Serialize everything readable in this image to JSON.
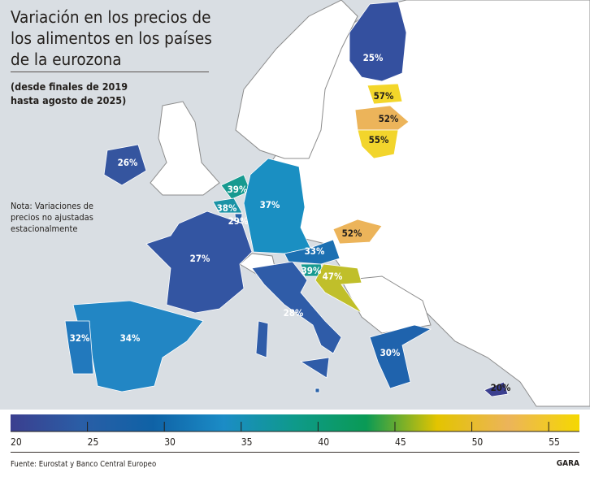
{
  "title": "Variación en los precios de los alimentos en los países de la eurozona",
  "subtitle": "(desde finales de 2019\nhasta agosto de 2025)",
  "note": "Nota: Variaciones de precios no ajustadas estacionalmente",
  "source": "Fuente: Eurostat y Banco Central Europeo",
  "brand": "GARA",
  "colors": {
    "sea": "#d9dee3",
    "non_euro_land": "#ffffff",
    "border": "#8c8c8c"
  },
  "legend": {
    "ticks": [
      "20",
      "25",
      "30",
      "35",
      "40",
      "45",
      "50",
      "55"
    ],
    "range": [
      20,
      57
    ],
    "stops": [
      "#3b3f8f",
      "#2a5ea6",
      "#0f62a6",
      "#1b8cc6",
      "#0e9a8a",
      "#0a9a55",
      "#e3c400",
      "#ecb45a",
      "#f5d800"
    ]
  },
  "regions": [
    {
      "label": "25%",
      "value": 25,
      "color": "#34509f"
    },
    {
      "label": "57%",
      "value": 57,
      "color": "#f3d62a"
    },
    {
      "label": "52%",
      "value": 52,
      "color": "#ecb45a"
    },
    {
      "label": "55%",
      "value": 55,
      "color": "#f2d52c"
    },
    {
      "label": "26%",
      "value": 26,
      "color": "#35559f"
    },
    {
      "label": "39%",
      "value": 39,
      "color": "#179a90"
    },
    {
      "label": "38%",
      "value": 38,
      "color": "#1a93a6"
    },
    {
      "label": "29%",
      "value": 29,
      "color": "#2a62a8"
    },
    {
      "label": "37%",
      "value": 37,
      "color": "#1a8fc2"
    },
    {
      "label": "27%",
      "value": 27,
      "color": "#3355a2"
    },
    {
      "label": "52%",
      "value": 52,
      "color": "#ecb45a"
    },
    {
      "label": "33%",
      "value": 33,
      "color": "#1c70b2"
    },
    {
      "label": "39%",
      "value": 39,
      "color": "#179a90"
    },
    {
      "label": "47%",
      "value": 47,
      "color": "#c0bf2a"
    },
    {
      "label": "28%",
      "value": 28,
      "color": "#2f5ca8"
    },
    {
      "label": "34%",
      "value": 34,
      "color": "#2286c4"
    },
    {
      "label": "32%",
      "value": 32,
      "color": "#2279bd"
    },
    {
      "label": "30%",
      "value": 30,
      "color": "#1f63ad"
    },
    {
      "label": "20%",
      "value": 20,
      "color": "#3b3f8f"
    },
    {
      "label": "",
      "value": null,
      "color": "#2a62a8"
    }
  ]
}
